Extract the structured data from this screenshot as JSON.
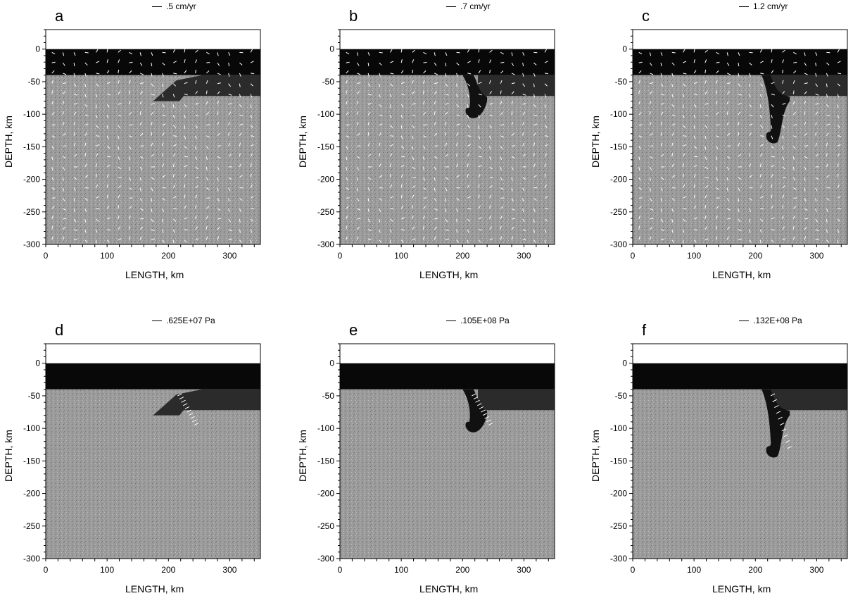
{
  "panels": [
    {
      "id": "a",
      "scale": ".5 cm/yr",
      "stage": 0
    },
    {
      "id": "b",
      "scale": ".7 cm/yr",
      "stage": 1
    },
    {
      "id": "c",
      "scale": "1.2 cm/yr",
      "stage": 2
    },
    {
      "id": "d",
      "scale": ".625E+07 Pa",
      "stage": 0
    },
    {
      "id": "e",
      "scale": ".105E+08 Pa",
      "stage": 1
    },
    {
      "id": "f",
      "scale": ".132E+08 Pa",
      "stage": 2
    }
  ],
  "axes": {
    "ylabel": "DEPTH, km",
    "xlabel": "LENGTH, km",
    "yticks": [
      "0",
      "-50",
      "-100",
      "-150",
      "-200",
      "-250",
      "-300"
    ],
    "xticks": [
      "0",
      "100",
      "200",
      "300"
    ],
    "xlim": [
      0,
      350
    ],
    "ylim": [
      -300,
      30
    ]
  }
}
